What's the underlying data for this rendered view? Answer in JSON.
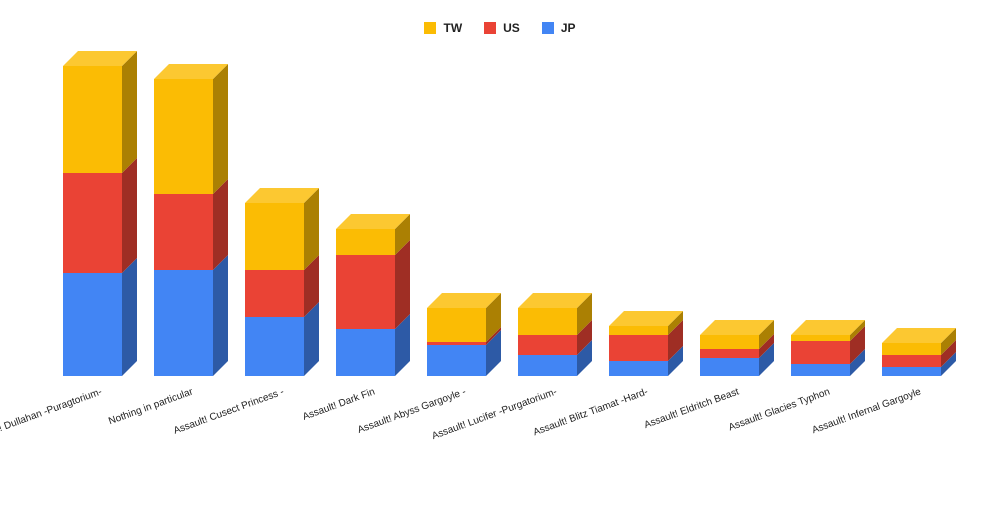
{
  "chart_data": {
    "type": "bar",
    "stacked": true,
    "three_d": true,
    "title": "",
    "xlabel": "",
    "ylabel": "",
    "ylim": [
      0,
      330
    ],
    "grid": false,
    "legend_position": "top-center",
    "categories": [
      "Assault! Dullahan -Puragtorium-",
      "Nothing in particular",
      "Assault! Cusect Princess -",
      "Assault! Dark Fin",
      "Assault! Abyss Gargoyle -",
      "Assault! Lucifer -Purgatorium-",
      "Assault! Blitz Tiamat -Hard-",
      "Assault! Eldritch Beast",
      "Assault! Glacies Typhon",
      "Assault! Infernal Gargoyle"
    ],
    "series": [
      {
        "name": "JP",
        "color": "#4285f4",
        "values": [
          103,
          106,
          59,
          47,
          31,
          21,
          15,
          18,
          12,
          9
        ]
      },
      {
        "name": "US",
        "color": "#ea4335",
        "values": [
          100,
          76,
          47,
          74,
          3,
          20,
          26,
          9,
          23,
          12
        ]
      },
      {
        "name": "TW",
        "color": "#fbbc04",
        "values": [
          107,
          115,
          67,
          26,
          34,
          27,
          9,
          14,
          6,
          12
        ]
      }
    ]
  }
}
